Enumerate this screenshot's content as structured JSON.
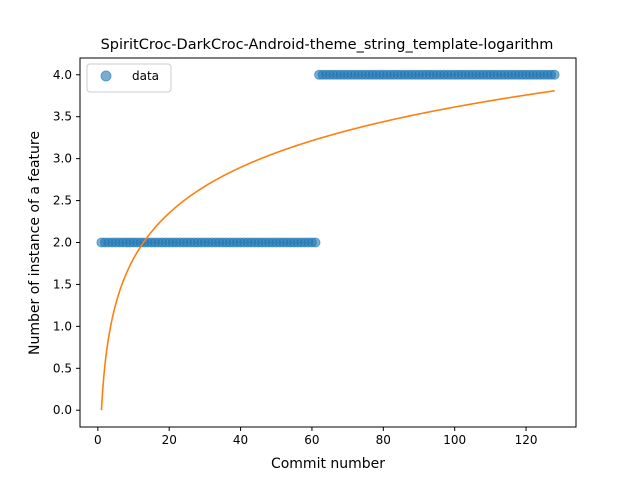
{
  "chart_data": {
    "type": "scatter",
    "title": "SpiritCroc-DarkCroc-Android-theme_string_template-logarithm",
    "xlabel": "Commit number",
    "ylabel": "Number of instance of a feature",
    "xlim": [
      -5,
      134
    ],
    "ylim": [
      -0.2,
      4.2
    ],
    "xticks": [
      0,
      20,
      40,
      60,
      80,
      100,
      120
    ],
    "yticks": [
      0.0,
      0.5,
      1.0,
      1.5,
      2.0,
      2.5,
      3.0,
      3.5,
      4.0
    ],
    "ytick_labels": [
      "0.0",
      "0.5",
      "1.0",
      "1.5",
      "2.0",
      "2.5",
      "3.0",
      "3.5",
      "4.0"
    ],
    "grid": false,
    "legend": {
      "position": "top-left",
      "entries": [
        "data"
      ]
    },
    "series": [
      {
        "name": "data",
        "kind": "scatter",
        "color": "#1f77b4",
        "segments": [
          {
            "x_start": 1,
            "x_end": 61,
            "y": 2
          },
          {
            "x_start": 62,
            "x_end": 128,
            "y": 4
          }
        ]
      },
      {
        "kind": "line",
        "color": "#ff7f0e",
        "model": "y = a * ln(x)",
        "a": 0.785,
        "x_range": [
          1,
          128
        ]
      }
    ]
  }
}
